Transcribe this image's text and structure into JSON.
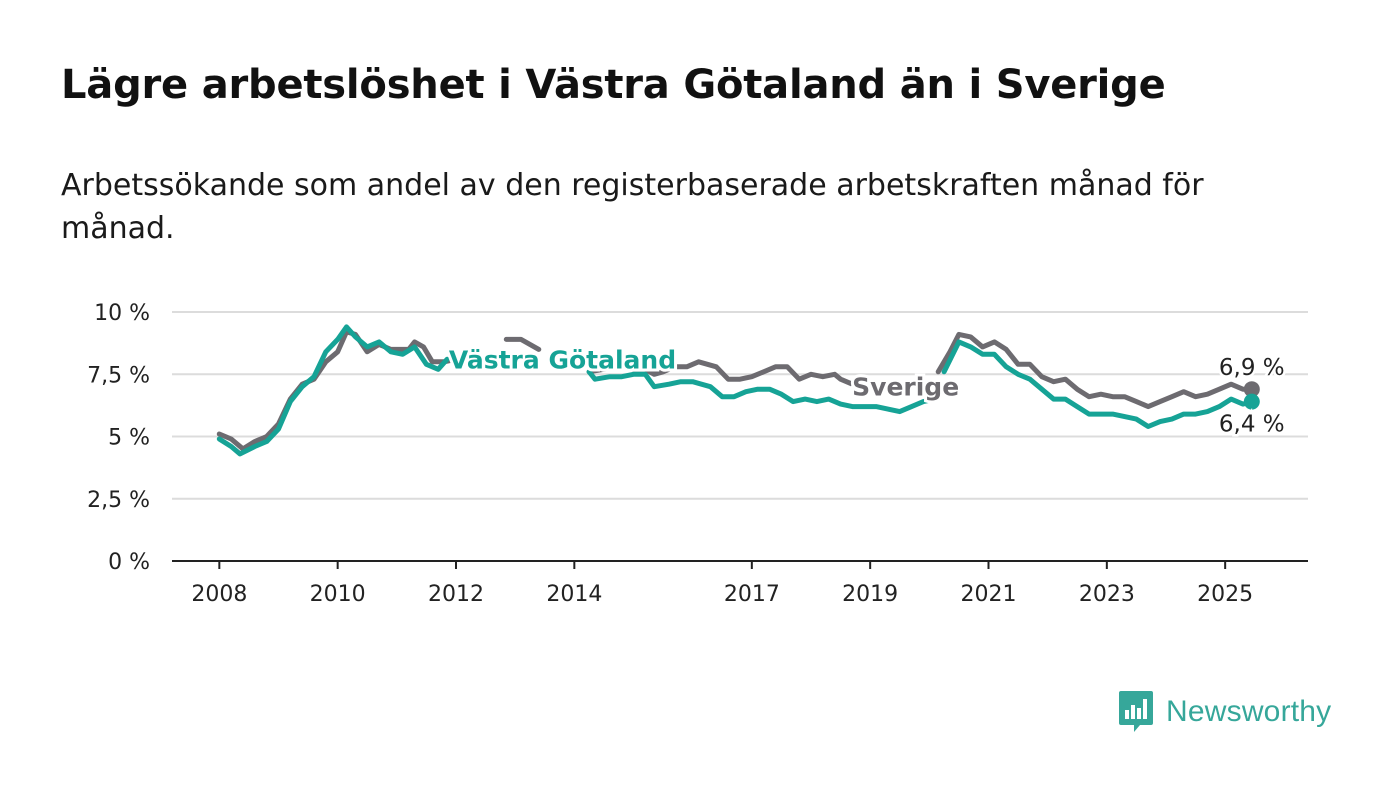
{
  "title": "Lägre arbetslöshet i Västra Götaland än i Sverige",
  "subtitle": "Arbetssökande som andel av den registerbaserade arbetskraften månad för månad.",
  "brand": {
    "name": "Newsworthy",
    "icon": "newsworthy-logo-icon",
    "color": "#36a79a"
  },
  "chart_data": {
    "type": "line",
    "title": "Lägre arbetslöshet i Västra Götaland än i Sverige",
    "subtitle": "Arbetssökande som andel av den registerbaserade arbetskraften månad för månad.",
    "xlabel": "",
    "ylabel": "",
    "ylim": [
      0,
      10
    ],
    "xlim": [
      2007.2,
      2026.4
    ],
    "yticks": [
      {
        "value": 0,
        "label": "0 %"
      },
      {
        "value": 2.5,
        "label": "2,5 %"
      },
      {
        "value": 5,
        "label": "5 %"
      },
      {
        "value": 7.5,
        "label": "7,5 %"
      },
      {
        "value": 10,
        "label": "10 %"
      }
    ],
    "xticks": [
      {
        "value": 2008,
        "label": "2008"
      },
      {
        "value": 2010,
        "label": "2010"
      },
      {
        "value": 2012,
        "label": "2012"
      },
      {
        "value": 2014,
        "label": "2014"
      },
      {
        "value": 2017,
        "label": "2017"
      },
      {
        "value": 2019,
        "label": "2019"
      },
      {
        "value": 2021,
        "label": "2021"
      },
      {
        "value": 2023,
        "label": "2023"
      },
      {
        "value": 2025,
        "label": "2025"
      }
    ],
    "grid": true,
    "legend": "inline labels",
    "series": [
      {
        "name": "Sverige",
        "color": "#6d6b70",
        "end_label": "6,9 %",
        "points": [
          [
            2008.0,
            5.1
          ],
          [
            2008.2,
            4.9
          ],
          [
            2008.4,
            4.5
          ],
          [
            2008.6,
            4.8
          ],
          [
            2008.8,
            5.0
          ],
          [
            2009.0,
            5.5
          ],
          [
            2009.2,
            6.5
          ],
          [
            2009.4,
            7.1
          ],
          [
            2009.6,
            7.3
          ],
          [
            2009.8,
            8.0
          ],
          [
            2010.0,
            8.4
          ],
          [
            2010.15,
            9.2
          ],
          [
            2010.3,
            9.1
          ],
          [
            2010.5,
            8.4
          ],
          [
            2010.7,
            8.7
          ],
          [
            2010.9,
            8.5
          ],
          [
            2011.0,
            8.5
          ],
          [
            2011.2,
            8.5
          ],
          [
            2011.3,
            8.8
          ],
          [
            2011.45,
            8.6
          ],
          [
            2011.6,
            8.0
          ],
          [
            2011.8,
            8.0
          ],
          [
            2012.0,
            8.1
          ]
        ]
      },
      {
        "name": "Sverige",
        "color": "#6d6b70",
        "points": [
          [
            2012.85,
            8.9
          ],
          [
            2013.1,
            8.9
          ],
          [
            2013.4,
            8.5
          ]
        ]
      },
      {
        "name": "Sverige",
        "color": "#6d6b70",
        "points": [
          [
            2014.25,
            7.6
          ],
          [
            2014.5,
            7.7
          ],
          [
            2014.8,
            7.8
          ],
          [
            2015.0,
            7.7
          ],
          [
            2015.2,
            7.7
          ],
          [
            2015.35,
            7.5
          ],
          [
            2015.5,
            7.6
          ],
          [
            2015.7,
            7.8
          ],
          [
            2015.9,
            7.8
          ],
          [
            2016.1,
            8.0
          ],
          [
            2016.4,
            7.8
          ],
          [
            2016.6,
            7.3
          ],
          [
            2016.8,
            7.3
          ],
          [
            2017.0,
            7.4
          ],
          [
            2017.2,
            7.6
          ],
          [
            2017.4,
            7.8
          ],
          [
            2017.6,
            7.8
          ],
          [
            2017.8,
            7.3
          ],
          [
            2018.0,
            7.5
          ],
          [
            2018.2,
            7.4
          ],
          [
            2018.4,
            7.5
          ],
          [
            2018.5,
            7.3
          ],
          [
            2018.7,
            7.1
          ],
          [
            2018.9,
            6.9
          ],
          [
            2019.0,
            7.1
          ]
        ]
      },
      {
        "name": "Sverige",
        "color": "#6d6b70",
        "points": [
          [
            2020.15,
            7.6
          ],
          [
            2020.35,
            8.4
          ],
          [
            2020.5,
            9.1
          ],
          [
            2020.7,
            9.0
          ],
          [
            2020.9,
            8.6
          ],
          [
            2021.1,
            8.8
          ],
          [
            2021.3,
            8.5
          ],
          [
            2021.5,
            7.9
          ],
          [
            2021.7,
            7.9
          ],
          [
            2021.9,
            7.4
          ],
          [
            2022.1,
            7.2
          ],
          [
            2022.3,
            7.3
          ],
          [
            2022.5,
            6.9
          ],
          [
            2022.7,
            6.6
          ],
          [
            2022.9,
            6.7
          ],
          [
            2023.1,
            6.6
          ],
          [
            2023.3,
            6.6
          ],
          [
            2023.5,
            6.4
          ],
          [
            2023.7,
            6.2
          ],
          [
            2023.9,
            6.4
          ],
          [
            2024.1,
            6.6
          ],
          [
            2024.3,
            6.8
          ],
          [
            2024.5,
            6.6
          ],
          [
            2024.7,
            6.7
          ],
          [
            2024.9,
            6.9
          ],
          [
            2025.1,
            7.1
          ],
          [
            2025.3,
            6.9
          ],
          [
            2025.45,
            6.9
          ]
        ]
      },
      {
        "name": "Västra Götaland",
        "color": "#16a396",
        "end_label": "6,4 %",
        "points": [
          [
            2008.0,
            4.9
          ],
          [
            2008.2,
            4.6
          ],
          [
            2008.35,
            4.3
          ],
          [
            2008.6,
            4.6
          ],
          [
            2008.8,
            4.8
          ],
          [
            2009.0,
            5.3
          ],
          [
            2009.2,
            6.4
          ],
          [
            2009.4,
            7.0
          ],
          [
            2009.6,
            7.4
          ],
          [
            2009.8,
            8.4
          ],
          [
            2010.0,
            8.9
          ],
          [
            2010.15,
            9.4
          ],
          [
            2010.3,
            9.0
          ],
          [
            2010.5,
            8.6
          ],
          [
            2010.7,
            8.8
          ],
          [
            2010.9,
            8.4
          ],
          [
            2011.1,
            8.3
          ],
          [
            2011.3,
            8.6
          ],
          [
            2011.5,
            7.9
          ],
          [
            2011.7,
            7.7
          ],
          [
            2011.85,
            8.1
          ]
        ]
      },
      {
        "name": "Västra Götaland",
        "color": "#16a396",
        "points": [
          [
            2014.25,
            7.6
          ],
          [
            2014.35,
            7.3
          ],
          [
            2014.6,
            7.4
          ],
          [
            2014.8,
            7.4
          ],
          [
            2015.0,
            7.5
          ],
          [
            2015.2,
            7.5
          ],
          [
            2015.35,
            7.0
          ],
          [
            2015.6,
            7.1
          ],
          [
            2015.8,
            7.2
          ],
          [
            2016.0,
            7.2
          ],
          [
            2016.3,
            7.0
          ],
          [
            2016.5,
            6.6
          ],
          [
            2016.7,
            6.6
          ],
          [
            2016.9,
            6.8
          ],
          [
            2017.1,
            6.9
          ],
          [
            2017.3,
            6.9
          ],
          [
            2017.5,
            6.7
          ],
          [
            2017.7,
            6.4
          ],
          [
            2017.9,
            6.5
          ],
          [
            2018.1,
            6.4
          ],
          [
            2018.3,
            6.5
          ],
          [
            2018.5,
            6.3
          ],
          [
            2018.7,
            6.2
          ],
          [
            2018.9,
            6.2
          ],
          [
            2019.1,
            6.2
          ],
          [
            2019.3,
            6.1
          ],
          [
            2019.5,
            6.0
          ],
          [
            2019.7,
            6.2
          ],
          [
            2019.9,
            6.4
          ],
          [
            2020.1,
            6.5
          ]
        ]
      },
      {
        "name": "Västra Götaland",
        "color": "#16a396",
        "points": [
          [
            2020.25,
            7.6
          ],
          [
            2020.5,
            8.8
          ],
          [
            2020.7,
            8.6
          ],
          [
            2020.9,
            8.3
          ],
          [
            2021.1,
            8.3
          ],
          [
            2021.3,
            7.8
          ],
          [
            2021.5,
            7.5
          ],
          [
            2021.7,
            7.3
          ],
          [
            2021.9,
            6.9
          ],
          [
            2022.1,
            6.5
          ],
          [
            2022.3,
            6.5
          ],
          [
            2022.5,
            6.2
          ],
          [
            2022.7,
            5.9
          ],
          [
            2022.9,
            5.9
          ],
          [
            2023.1,
            5.9
          ],
          [
            2023.3,
            5.8
          ],
          [
            2023.5,
            5.7
          ],
          [
            2023.7,
            5.4
          ],
          [
            2023.9,
            5.6
          ],
          [
            2024.1,
            5.7
          ],
          [
            2024.3,
            5.9
          ],
          [
            2024.5,
            5.9
          ],
          [
            2024.7,
            6.0
          ],
          [
            2024.9,
            6.2
          ],
          [
            2025.1,
            6.5
          ],
          [
            2025.3,
            6.3
          ],
          [
            2025.45,
            6.4
          ]
        ]
      }
    ],
    "end_points": [
      {
        "series": "Sverige",
        "x": 2025.45,
        "y": 6.9,
        "label": "6,9 %",
        "color": "#6d6b70"
      },
      {
        "series": "Västra Götaland",
        "x": 2025.45,
        "y": 6.4,
        "label": "6,4 %",
        "color": "#16a396"
      }
    ],
    "inline_labels": [
      {
        "text": "Västra Götaland",
        "x": 2013.8,
        "y": 8.1,
        "color": "#16a396"
      },
      {
        "text": "Sverige",
        "x": 2019.6,
        "y": 7.0,
        "color": "#6d6b70"
      }
    ]
  }
}
